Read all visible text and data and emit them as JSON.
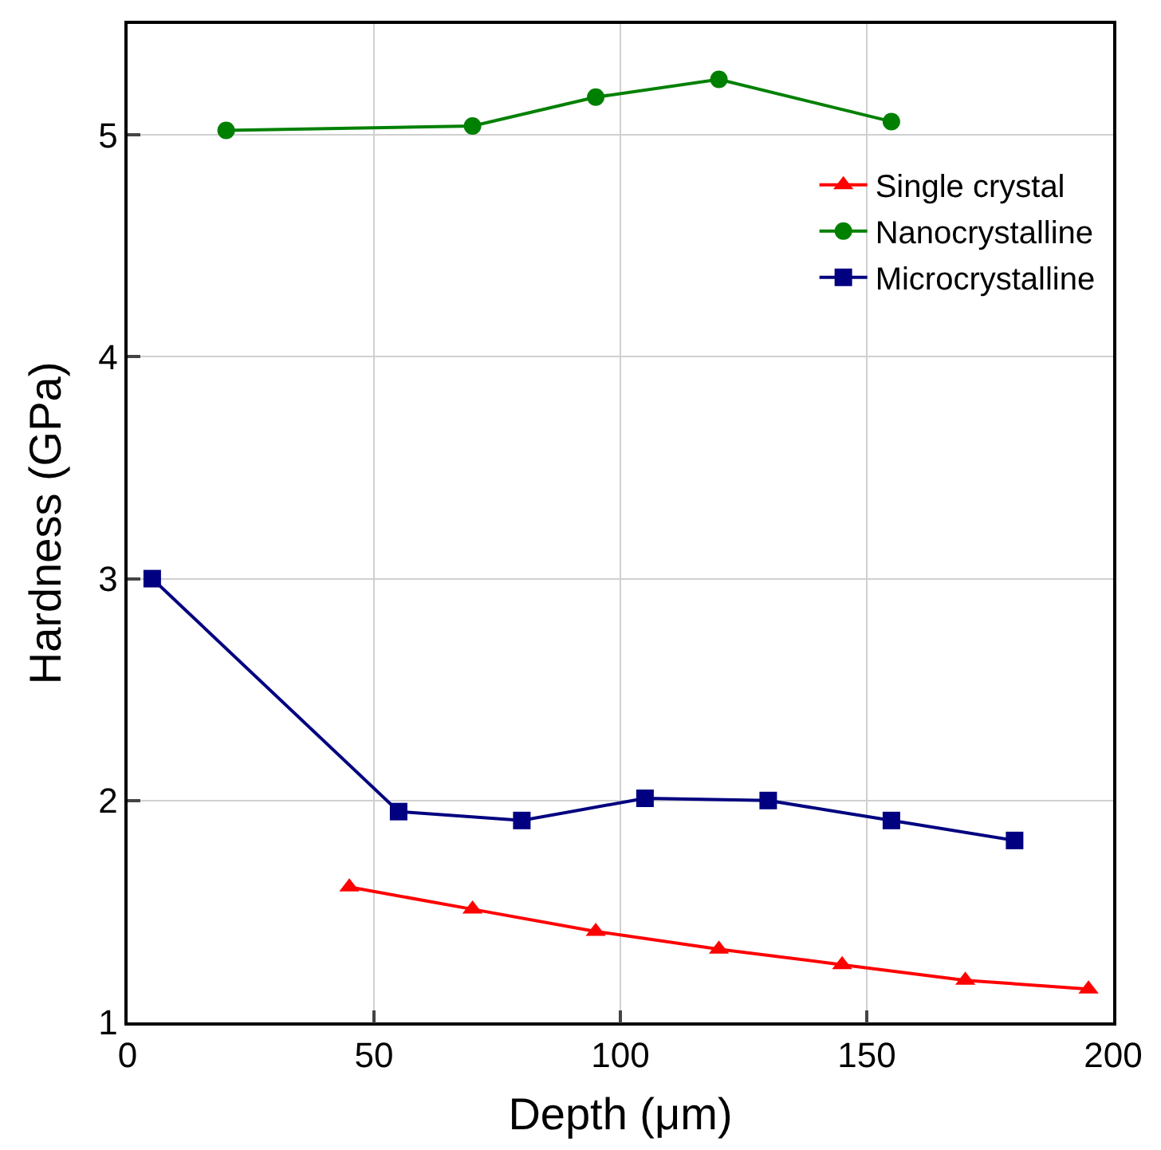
{
  "chart_data": {
    "type": "line",
    "xlabel": "Depth (μm)",
    "ylabel": "Hardness (GPa)",
    "xlim": [
      0,
      200
    ],
    "xticks": [
      0,
      50,
      100,
      150,
      200
    ],
    "ylim": [
      1,
      5.5
    ],
    "yticks": [
      1,
      2,
      3,
      4,
      5
    ],
    "grid": true,
    "legend": "top right",
    "series": [
      {
        "name": "Single crystal",
        "color": "#ff0000",
        "marker": "triangle",
        "x": [
          45,
          70,
          95,
          120,
          145,
          170,
          195
        ],
        "values": [
          1.61,
          1.51,
          1.41,
          1.33,
          1.26,
          1.19,
          1.15
        ]
      },
      {
        "name": "Nanocrystalline",
        "color": "#008000",
        "marker": "circle",
        "x": [
          20,
          70,
          95,
          120,
          155
        ],
        "values": [
          5.02,
          5.04,
          5.17,
          5.25,
          5.06
        ]
      },
      {
        "name": "Microcrystalline",
        "color": "#000080",
        "marker": "square",
        "x": [
          5,
          55,
          80,
          105,
          130,
          155,
          180
        ],
        "values": [
          3.0,
          1.95,
          1.91,
          2.01,
          2.0,
          1.91,
          1.82
        ]
      }
    ]
  }
}
